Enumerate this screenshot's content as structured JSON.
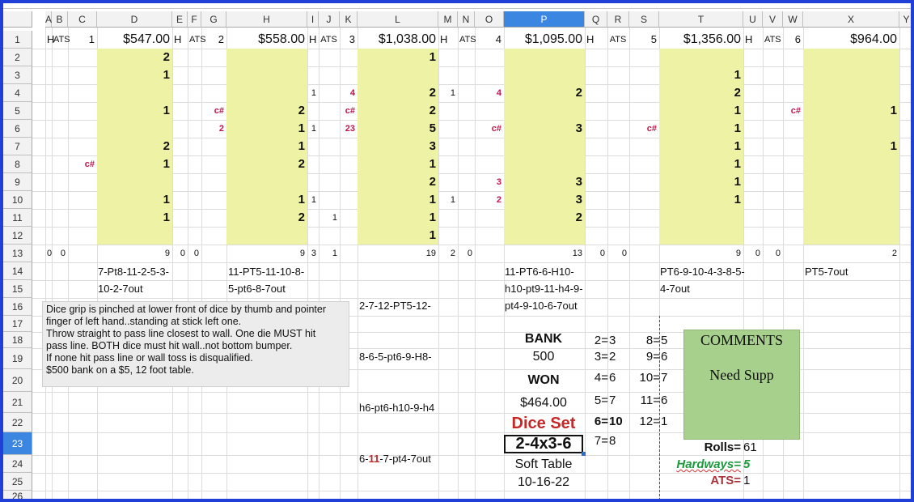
{
  "columns": [
    "A",
    "B",
    "C",
    "D",
    "E",
    "F",
    "G",
    "H",
    "I",
    "J",
    "K",
    "L",
    "M",
    "N",
    "O",
    "P",
    "Q",
    "R",
    "S",
    "T",
    "U",
    "V",
    "W",
    "X",
    "Y"
  ],
  "selected_column": "P",
  "rows": [
    "1",
    "2",
    "3",
    "4",
    "5",
    "6",
    "7",
    "8",
    "9",
    "10",
    "11",
    "12",
    "13",
    "14",
    "15",
    "16",
    "17",
    "18",
    "19",
    "20",
    "21",
    "22",
    "23",
    "24",
    "25",
    "26"
  ],
  "selected_row": "23",
  "row1": {
    "A": "H",
    "B": "ATS",
    "C": "1",
    "D": "$547.00",
    "E": "H",
    "F": "ATS",
    "G": "2",
    "H": "$558.00",
    "I": "H",
    "J": "ATS",
    "K": "3",
    "L": "$1,038.00",
    "M": "H",
    "N": "ATS",
    "O": "4",
    "P": "$1,095.00",
    "Q": "H",
    "R": "ATS",
    "S": "5",
    "T": "$1,356.00",
    "U": "H",
    "V": "ATS",
    "W": "6",
    "X": "$964.00"
  },
  "col_D": [
    "2",
    "1",
    "",
    "1",
    "",
    "2",
    "1",
    "",
    "1",
    "1",
    ""
  ],
  "col_H": [
    "",
    "",
    "",
    "2",
    "1",
    "1",
    "2",
    "",
    "1",
    "2",
    ""
  ],
  "col_L": [
    "1",
    "",
    "2",
    "2",
    "5",
    "3",
    "1",
    "2",
    "1",
    "1",
    "1"
  ],
  "col_P": [
    "",
    "",
    "2",
    "",
    "3",
    "",
    "",
    "3",
    "3",
    "2",
    ""
  ],
  "col_T": [
    "",
    "1",
    "2",
    "1",
    "1",
    "1",
    "1",
    "1",
    "1",
    "",
    ""
  ],
  "col_X": [
    "",
    "",
    "",
    "1",
    "",
    "1",
    "",
    "",
    "",
    "",
    ""
  ],
  "small_marks": {
    "C8": "c#",
    "G5": "c#",
    "G6": "2",
    "I4": "1",
    "I6": "1",
    "I10": "1",
    "J11": "1",
    "K4": "4",
    "K5": "c#",
    "K6": "23",
    "M4": "1",
    "M10": "1",
    "O4": "4",
    "O6": "c#",
    "O9": "3",
    "O10": "2",
    "S6": "c#",
    "W5": "c#"
  },
  "row13": {
    "A": "0",
    "B": "0",
    "D": "9",
    "E": "0",
    "F": "0",
    "H": "9",
    "I": "3",
    "J": "1",
    "L": "19",
    "M": "2",
    "N": "0",
    "P": "13",
    "Q": "0",
    "R": "0",
    "T": "9",
    "U": "0",
    "V": "0",
    "X": "2"
  },
  "sequences": {
    "D": "7-Pt8-11-2-5-3-\n10-2-7out",
    "H": "11-PT5-11-10-8-\n5-pt6-8-7out",
    "L_lines": [
      "2-7-12-PT5-12-",
      "8-6-5-pt6-9-H8-",
      "h6-pt6-h10-9-h4"
    ],
    "L_last_prefix": "6-",
    "L_last_red": "11",
    "L_last_suffix": "-7-pt4-7out",
    "P": "11-PT6-6-H10-\nh10-pt9-11-h4-9-\npt4-9-10-6-7out",
    "T": "PT6-9-10-4-3-8-5-\n4-7out",
    "X": "PT5-7out"
  },
  "note": [
    "Dice grip is pinched at lower front of dice by thumb and pointer",
    "finger of left hand..standing at stick left one.",
    "Throw straight to pass line closest to wall. One die MUST hit",
    "pass line. BOTH dice must hit wall..not bottom bumper.",
    "If none hit pass line or wall toss is disqualified.",
    "$500 bank  on a $5, 12 foot table."
  ],
  "summary": {
    "bank_label": "BANK",
    "bank_value": "500",
    "won_label": "WON",
    "won_value": "$464.00",
    "dice_set_label": "Dice Set",
    "dice_set_value": "2-4x3-6",
    "table_type": "Soft Table",
    "date": "10-16-22"
  },
  "counts_left": [
    [
      "2=",
      "3"
    ],
    [
      "3=",
      "2"
    ],
    [
      "4=",
      "6"
    ],
    [
      "5=",
      "7"
    ],
    [
      "6=",
      "10"
    ],
    [
      "7=",
      "8"
    ]
  ],
  "counts_right": [
    [
      "8=",
      "5"
    ],
    [
      "9=",
      "6"
    ],
    [
      "10=",
      "7"
    ],
    [
      "11=",
      "6"
    ],
    [
      "12=",
      "1"
    ]
  ],
  "comments": {
    "title": "COMMENTS",
    "text": "Need Supp"
  },
  "stats": {
    "rolls_label": "Rolls=",
    "rolls_value": "61",
    "hardways_label": "Hardways=",
    "hardways_value": "5",
    "ats_label": "ATS=",
    "ats_value": "1"
  },
  "colors": {
    "frame": "#1f3fd6",
    "yellow": "#eef2a4",
    "green_box": "#a8d08d",
    "red": "#c0154a",
    "dice_set_red": "#c62828",
    "hardways_green": "#1a9a3a"
  }
}
